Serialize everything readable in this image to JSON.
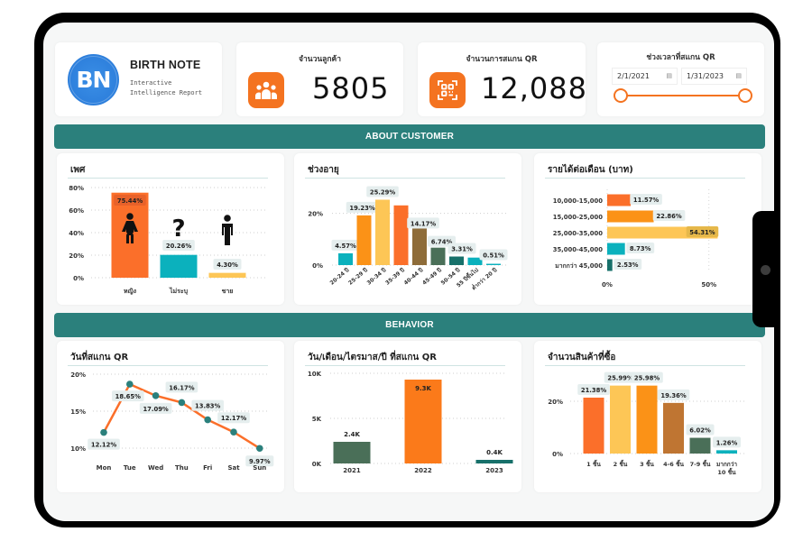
{
  "brand": {
    "logo_text": "BN",
    "title": "BIRTH NOTE",
    "subtitle": "Interactive Intelligence Report"
  },
  "kpis": [
    {
      "label": "จำนวนลูกค้า",
      "value": "5805",
      "icon": "people-group-icon"
    },
    {
      "label": "จำนวนการสแกน QR",
      "value": "12,088",
      "icon": "qr-scan-icon"
    }
  ],
  "date_range": {
    "label": "ช่วงเวลาที่สแกน QR",
    "start": "2/1/2021",
    "end": "1/31/2023",
    "calendar_icon": "calendar-icon"
  },
  "sections": {
    "customer": "ABOUT CUSTOMER",
    "behavior": "BEHAVIOR"
  },
  "colors": {
    "accent_orange": "#f47320",
    "teal_header": "#2b807c",
    "orange": "#fb6f2a",
    "amber": "#fb9217",
    "yellow": "#fdc656",
    "teal": "#0bb1bd",
    "brown": "#8e6c39",
    "green": "#4a6f58",
    "dark_teal": "#17706a",
    "copper": "#bf7532"
  },
  "chart_data": [
    {
      "id": "gender",
      "type": "bar",
      "title": "เพศ",
      "categories": [
        "หญิง",
        "ไม่ระบุ",
        "ชาย"
      ],
      "values": [
        75.44,
        20.26,
        4.3
      ],
      "labels": [
        "75.44%",
        "20.26%",
        "4.30%"
      ],
      "icons": [
        "female-icon",
        "question-mark-icon",
        "male-icon"
      ],
      "colors": [
        "#fb6f2a",
        "#0bb1bd",
        "#fdc656"
      ],
      "yticks": [
        "0%",
        "20%",
        "40%",
        "60%",
        "80%"
      ],
      "ylim": [
        0,
        80
      ],
      "grid": true
    },
    {
      "id": "age",
      "type": "bar",
      "title": "ช่วงอายุ",
      "categories": [
        "20-24 ปี",
        "25-29 ปี",
        "30-34 ปี",
        "35-39 ปี",
        "40-44 ปี",
        "45-49 ปี",
        "50-54 ปี",
        "55 ปีขึ้นไป",
        "ต่ำกว่า 20 ปี"
      ],
      "values": [
        4.57,
        19.23,
        25.29,
        23.1,
        14.17,
        6.74,
        3.31,
        2.9,
        0.51
      ],
      "labels": [
        "4.57%",
        "19.23%",
        "25.29%",
        "",
        "14.17%",
        "6.74%",
        "3.31%",
        "",
        "0.51%"
      ],
      "colors": [
        "#0bb1bd",
        "#fb9217",
        "#fdc656",
        "#fb6f2a",
        "#8e6c39",
        "#4a6f58",
        "#17706a",
        "#0bb1bd",
        "#0bb1bd"
      ],
      "yticks": [
        "0%",
        "20%"
      ],
      "ylim": [
        0,
        30
      ],
      "grid": true
    },
    {
      "id": "income",
      "type": "bar",
      "orientation": "horizontal",
      "title": "รายได้ต่อเดือน (บาท)",
      "categories": [
        "10,000-15,000",
        "15,000-25,000",
        "25,000-35,000",
        "35,000-45,000",
        "มากกว่า 45,000"
      ],
      "values": [
        11.57,
        22.86,
        54.31,
        8.73,
        2.53
      ],
      "labels": [
        "11.57%",
        "22.86%",
        "54.31%",
        "8.73%",
        "2.53%"
      ],
      "colors": [
        "#fb6f2a",
        "#fb9217",
        "#fdc656",
        "#0bb1bd",
        "#17706a"
      ],
      "xticks": [
        "0%",
        "50%"
      ],
      "xlim": [
        0,
        55
      ],
      "grid": true
    },
    {
      "id": "weekday",
      "type": "line",
      "title": "วันที่สแกน QR",
      "categories": [
        "Mon",
        "Tue",
        "Wed",
        "Thu",
        "Fri",
        "Sat",
        "Sun"
      ],
      "values": [
        12.12,
        18.65,
        17.09,
        16.17,
        13.83,
        12.17,
        9.97
      ],
      "labels": [
        "12.12%",
        "18.65%",
        "17.09%",
        "16.17%",
        "13.83%",
        "12.17%",
        "9.97%"
      ],
      "line_color": "#fb6f2a",
      "marker_color": "#2b807c",
      "yticks": [
        "10%",
        "15%",
        "20%"
      ],
      "ylim": [
        10,
        20
      ],
      "grid": true
    },
    {
      "id": "year",
      "type": "bar",
      "title": "วัน/เดือน/ไตรมาส/ปี ที่สแกน QR",
      "categories": [
        "2021",
        "2022",
        "2023"
      ],
      "values": [
        2.4,
        9.3,
        0.4
      ],
      "labels": [
        "2.4K",
        "9.3K",
        "0.4K"
      ],
      "colors": [
        "#4a6f58",
        "#fb7a1a",
        "#17706a"
      ],
      "yticks": [
        "0K",
        "5K",
        "10K"
      ],
      "ylim": [
        0,
        10
      ],
      "grid": true
    },
    {
      "id": "items",
      "type": "bar",
      "title": "จำนวนสินค้าที่ซื้อ",
      "categories": [
        "1 ชิ้น",
        "2 ชิ้น",
        "3 ชิ้น",
        "4-6 ชิ้น",
        "7-9 ชิ้น",
        "มากกว่า 10 ชิ้น"
      ],
      "values": [
        21.38,
        25.99,
        25.98,
        19.36,
        6.02,
        1.26
      ],
      "labels": [
        "21.38%",
        "25.99%",
        "25.98%",
        "19.36%",
        "6.02%",
        "1.26%"
      ],
      "colors": [
        "#fb6f2a",
        "#fdc656",
        "#fb9217",
        "#bf7532",
        "#4a6f58",
        "#0bb1bd"
      ],
      "yticks": [
        "0%",
        "20%"
      ],
      "ylim": [
        0,
        30
      ],
      "grid": true
    }
  ]
}
